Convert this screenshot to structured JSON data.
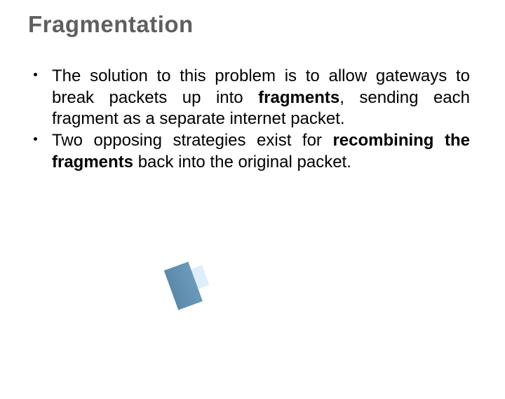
{
  "slide": {
    "title": "Fragmentation",
    "title_color": "#5f5f5f",
    "title_fontsize": 33,
    "body_fontsize": 24,
    "body_color": "#000000",
    "background_color": "#ffffff",
    "bullets": [
      {
        "segments": [
          {
            "text": "The solution to this problem is to allow gateways to break packets up into ",
            "bold": false
          },
          {
            "text": "fragments",
            "bold": true
          },
          {
            "text": ", sending each fragment as a separate internet packet.",
            "bold": false
          }
        ]
      },
      {
        "segments": [
          {
            "text": "Two opposing strategies exist for ",
            "bold": false
          },
          {
            "text": "recombining the fragments",
            "bold": true
          },
          {
            "text": " back into the original packet.",
            "bold": false
          }
        ]
      }
    ],
    "accent": {
      "dark_gradient_start": "#1a2a3a",
      "dark_gradient_mid": "#3a5a7a",
      "dark_gradient_end": "#6a9aba",
      "light_gradient_start": "#a0c8e0",
      "light_gradient_end": "#d0e8f8"
    }
  }
}
